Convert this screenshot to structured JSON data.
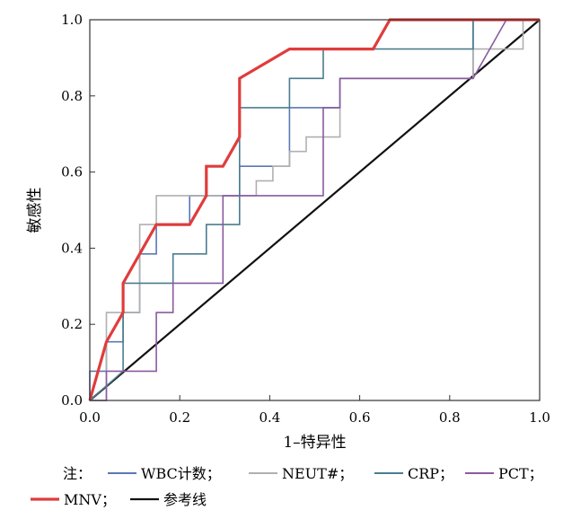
{
  "chart_data": {
    "type": "line",
    "title": "",
    "xlabel": "1–特异性",
    "ylabel": "敏感性",
    "xlim": [
      0,
      1
    ],
    "ylim": [
      0,
      1
    ],
    "xticks": [
      "0.0",
      "0.2",
      "0.4",
      "0.6",
      "0.8",
      "1.0"
    ],
    "yticks": [
      "0.0",
      "0.2",
      "0.4",
      "0.6",
      "0.8",
      "1.0"
    ],
    "grid": false,
    "legend": {
      "prefix": "注：",
      "placement": "bottom",
      "separator": "；"
    },
    "series": [
      {
        "name": "WBC计数",
        "color": "#5b78b4",
        "width": 1.6,
        "x": [
          0,
          0,
          0.037,
          0.037,
          0.074,
          0.074,
          0.111,
          0.111,
          0.148,
          0.148,
          0.222,
          0.222,
          0.333,
          0.333,
          0.444,
          0.444,
          0.556,
          0.556,
          0.852,
          0.852,
          1.0
        ],
        "y": [
          0,
          0.077,
          0.077,
          0.154,
          0.154,
          0.231,
          0.231,
          0.385,
          0.385,
          0.462,
          0.462,
          0.538,
          0.538,
          0.615,
          0.615,
          0.769,
          0.769,
          0.846,
          0.846,
          1.0,
          1.0
        ]
      },
      {
        "name": "NEUT#",
        "color": "#b0b0b0",
        "width": 1.6,
        "x": [
          0,
          0.037,
          0.037,
          0.111,
          0.111,
          0.148,
          0.148,
          0.37,
          0.37,
          0.407,
          0.407,
          0.444,
          0.444,
          0.481,
          0.481,
          0.519,
          0.519,
          0.556,
          0.556,
          0.852,
          0.852,
          0.963,
          0.963,
          1.0
        ],
        "y": [
          0,
          0,
          0.231,
          0.231,
          0.462,
          0.462,
          0.538,
          0.538,
          0.577,
          0.577,
          0.615,
          0.615,
          0.654,
          0.654,
          0.692,
          0.692,
          0.692,
          0.692,
          0.846,
          0.846,
          0.923,
          0.923,
          1.0,
          1.0
        ]
      },
      {
        "name": "CRP",
        "color": "#4a7d8e",
        "width": 1.6,
        "x": [
          0,
          0.074,
          0.074,
          0.185,
          0.185,
          0.259,
          0.259,
          0.333,
          0.333,
          0.444,
          0.444,
          0.519,
          0.519,
          0.852,
          0.852,
          1.0
        ],
        "y": [
          0,
          0.077,
          0.308,
          0.308,
          0.385,
          0.385,
          0.462,
          0.462,
          0.769,
          0.769,
          0.846,
          0.846,
          0.923,
          0.923,
          1.0,
          1.0
        ]
      },
      {
        "name": "PCT",
        "color": "#8a5aa0",
        "width": 1.6,
        "x": [
          0,
          0.037,
          0.037,
          0.148,
          0.148,
          0.185,
          0.185,
          0.296,
          0.296,
          0.519,
          0.519,
          0.556,
          0.556,
          0.667,
          0.667,
          0.852,
          0.926,
          1.0
        ],
        "y": [
          0,
          0,
          0.077,
          0.077,
          0.231,
          0.231,
          0.308,
          0.308,
          0.538,
          0.538,
          0.769,
          0.769,
          0.846,
          0.846,
          0.846,
          0.846,
          1.0,
          1.0
        ]
      },
      {
        "name": "MNV",
        "color": "#e03c3c",
        "width": 3.2,
        "x": [
          0,
          0.037,
          0.037,
          0.074,
          0.074,
          0.148,
          0.222,
          0.259,
          0.259,
          0.296,
          0.333,
          0.333,
          0.444,
          0.63,
          0.667,
          1.0
        ],
        "y": [
          0,
          0.154,
          0.154,
          0.231,
          0.308,
          0.462,
          0.462,
          0.538,
          0.615,
          0.615,
          0.692,
          0.846,
          0.923,
          0.923,
          1.0,
          1.0
        ]
      },
      {
        "name": "参考线",
        "color": "#111111",
        "width": 2.2,
        "x": [
          0,
          1
        ],
        "y": [
          0,
          1
        ]
      }
    ]
  }
}
